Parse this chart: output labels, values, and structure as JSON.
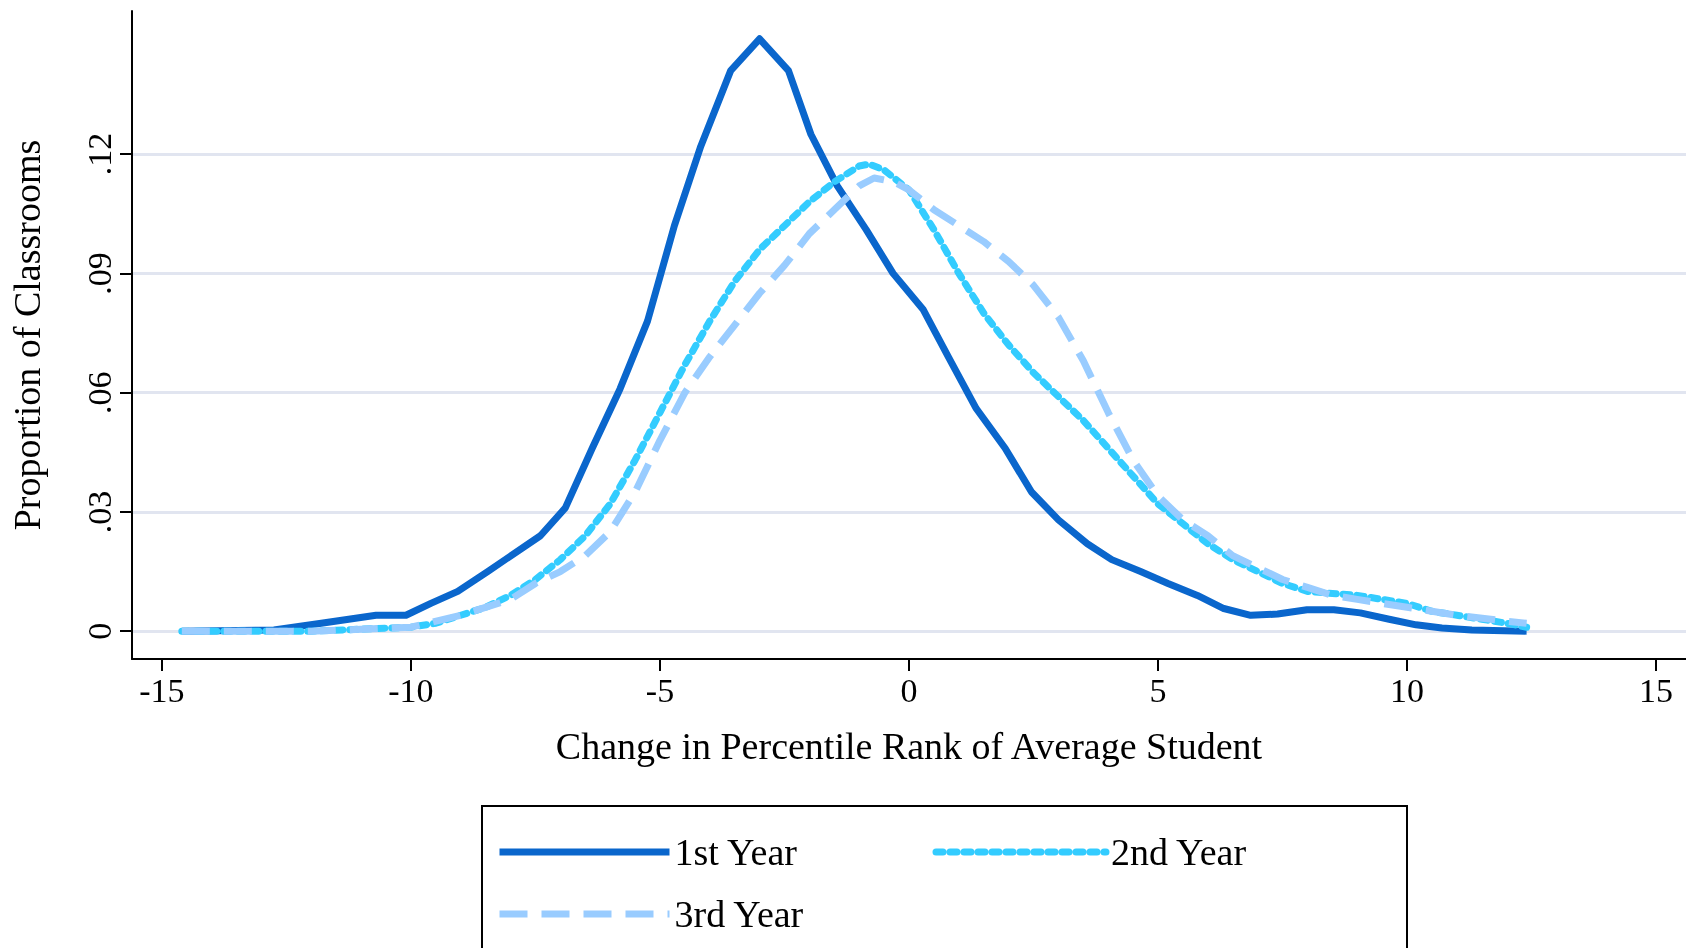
{
  "chart_data": {
    "type": "line",
    "xlabel": "Change in Percentile Rank of Average Student",
    "ylabel": "Proportion of Classrooms",
    "xlim": [
      -15.6,
      15.6
    ],
    "xticks": [
      -15,
      -10,
      -5,
      0,
      5,
      10,
      15
    ],
    "ylim": [
      -0.007,
      0.156
    ],
    "yticks": [
      {
        "value": 0,
        "label": "0"
      },
      {
        "value": 0.03,
        "label": ".03"
      },
      {
        "value": 0.06,
        "label": ".06"
      },
      {
        "value": 0.09,
        "label": ".09"
      },
      {
        "value": 0.12,
        "label": ".12"
      }
    ],
    "grid": "y",
    "legend": "bottom",
    "marker": "none",
    "series": [
      {
        "name": "1st Year",
        "color": "#0a66cc",
        "line_style": "solid",
        "x": [
          -14.6,
          -12.75,
          -11.8,
          -11.25,
          -10.7,
          -10.1,
          -9.6,
          -9.06,
          -8.46,
          -7.4,
          -6.9,
          -6.36,
          -5.8,
          -5.25,
          -4.71,
          -4.18,
          -3.58,
          -3.0,
          -2.42,
          -1.97,
          -1.44,
          -0.86,
          -0.32,
          0.28,
          0.79,
          1.35,
          1.93,
          2.46,
          3.0,
          3.58,
          4.07,
          4.65,
          5.2,
          5.79,
          6.32,
          6.86,
          7.4,
          7.99,
          8.53,
          9.06,
          9.64,
          10.18,
          10.7,
          11.3,
          12.4
        ],
        "values": [
          0,
          0.0003,
          0.002,
          0.003,
          0.004,
          0.004,
          0.007,
          0.01,
          0.015,
          0.024,
          0.031,
          0.046,
          0.061,
          0.078,
          0.102,
          0.122,
          0.141,
          0.149,
          0.141,
          0.125,
          0.112,
          0.101,
          0.09,
          0.081,
          0.069,
          0.056,
          0.046,
          0.035,
          0.028,
          0.022,
          0.018,
          0.015,
          0.012,
          0.009,
          0.0057,
          0.004,
          0.0043,
          0.0054,
          0.0054,
          0.0046,
          0.003,
          0.0016,
          0.0008,
          0.0003,
          0
        ]
      },
      {
        "name": "2nd Year",
        "color": "#33ccff",
        "line_style": "dotted",
        "x": [
          -14.6,
          -12,
          -11,
          -10,
          -9.5,
          -9,
          -8.5,
          -8,
          -7.5,
          -7,
          -6.5,
          -6,
          -5.5,
          -5,
          -4.5,
          -4,
          -3.5,
          -3,
          -2.5,
          -2,
          -1.5,
          -1,
          -0.8,
          -0.5,
          0,
          0.5,
          1,
          1.5,
          2,
          2.5,
          3,
          3.5,
          4,
          4.5,
          5,
          5.5,
          6,
          6.5,
          7,
          7.5,
          8,
          8.5,
          9,
          9.5,
          10,
          10.5,
          11,
          11.5,
          12,
          12.4
        ],
        "values": [
          0,
          0,
          0.0005,
          0.001,
          0.002,
          0.004,
          0.006,
          0.009,
          0.013,
          0.018,
          0.024,
          0.032,
          0.043,
          0.055,
          0.067,
          0.078,
          0.088,
          0.096,
          0.102,
          0.108,
          0.113,
          0.117,
          0.1175,
          0.116,
          0.111,
          0.101,
          0.09,
          0.08,
          0.072,
          0.065,
          0.059,
          0.053,
          0.046,
          0.039,
          0.032,
          0.027,
          0.022,
          0.018,
          0.015,
          0.012,
          0.01,
          0.0095,
          0.009,
          0.008,
          0.007,
          0.005,
          0.004,
          0.003,
          0.002,
          0.001
        ]
      },
      {
        "name": "3rd Year",
        "color": "#99ccff",
        "line_style": "dashed",
        "x": [
          -14.6,
          -12,
          -10,
          -9,
          -8,
          -7.5,
          -7,
          -6.5,
          -6,
          -5.5,
          -5,
          -4.5,
          -4,
          -3.5,
          -3,
          -2.5,
          -2,
          -1.5,
          -1,
          -0.7,
          -0.3,
          0,
          0.5,
          1,
          1.5,
          2,
          2.5,
          3,
          3.5,
          4,
          4.5,
          5,
          5.5,
          6,
          6.5,
          7,
          7.5,
          8,
          8.5,
          9,
          9.5,
          10,
          10.5,
          11,
          12,
          12.4
        ],
        "values": [
          0,
          0,
          0.001,
          0.004,
          0.008,
          0.012,
          0.015,
          0.019,
          0.025,
          0.035,
          0.048,
          0.06,
          0.069,
          0.077,
          0.085,
          0.092,
          0.1,
          0.106,
          0.112,
          0.114,
          0.113,
          0.111,
          0.106,
          0.102,
          0.098,
          0.093,
          0.087,
          0.079,
          0.068,
          0.055,
          0.043,
          0.034,
          0.028,
          0.024,
          0.019,
          0.016,
          0.013,
          0.011,
          0.009,
          0.008,
          0.007,
          0.006,
          0.005,
          0.004,
          0.0025,
          0.002
        ]
      }
    ]
  }
}
